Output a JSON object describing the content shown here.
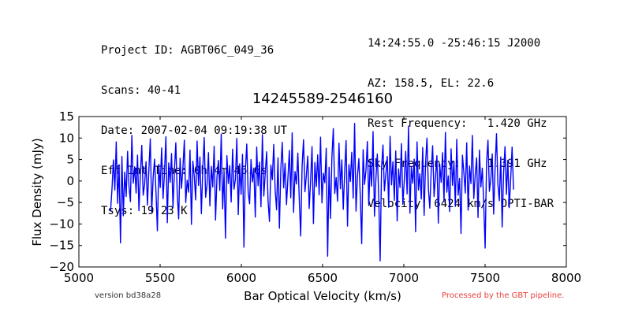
{
  "header": {
    "left": [
      "Project ID: AGBT06C_049_36",
      "Scans: 40-41",
      "Date: 2007-02-04 09:19:38 UT",
      "Eff Int Time: 0h 4m 46.6s",
      "Tsys: 19.23 K"
    ],
    "right": [
      "14:24:55.0 -25:46:15 J2000",
      "AZ: 158.5, EL: 22.6",
      "Rest Frequency:   1.420 GHz",
      "Sky Frequency:    1.391 GHz",
      "Velocity: 6424 km/s OPTI-BAR"
    ]
  },
  "footer": {
    "version": "version bd38a28",
    "processed": "Processed by the GBT pipeline."
  },
  "chart_data": {
    "type": "line",
    "title": "14245589-2546160",
    "xlabel": "Bar Optical Velocity (km/s)",
    "ylabel": "Flux Density (mJy)",
    "xlim": [
      5000,
      8000
    ],
    "ylim": [
      -20,
      15
    ],
    "xticks": [
      5000,
      5500,
      6000,
      6500,
      7000,
      7500,
      8000
    ],
    "yticks": [
      -20,
      -15,
      -10,
      -5,
      0,
      5,
      10,
      15
    ],
    "line_color": "#0000ff",
    "grid": false,
    "series": [
      {
        "x_start": 5195,
        "x_end": 7675,
        "values": [
          -7.0,
          -1.9,
          4.9,
          -2.1,
          9.1,
          -5.2,
          3.8,
          -14.4,
          5.7,
          -8.1,
          2.1,
          -3.6,
          6.9,
          -1.2,
          -4.8,
          10.6,
          -0.5,
          3.3,
          -2.8,
          6.0,
          -6.9,
          1.4,
          8.3,
          -3.3,
          -0.8,
          4.5,
          -5.6,
          2.6,
          9.8,
          -7.2,
          0.7,
          5.1,
          -2.4,
          -11.6,
          3.9,
          -1.5,
          7.7,
          -4.1,
          1.9,
          10.3,
          -9.7,
          4.2,
          -0.3,
          6.4,
          -6.2,
          2.3,
          8.9,
          -3.0,
          -8.8,
          5.3,
          -1.7,
          3.1,
          9.5,
          -5.0,
          0.2,
          -2.6,
          7.2,
          -10.1,
          4.6,
          1.1,
          -4.4,
          9.3,
          -1.0,
          5.6,
          -7.6,
          2.9,
          10.1,
          -3.8,
          -0.9,
          6.6,
          -5.8,
          3.4,
          -1.4,
          8.1,
          -9.1,
          0.9,
          4.8,
          -2.2,
          10.9,
          -6.5,
          2.0,
          -13.3,
          5.9,
          -0.6,
          3.6,
          -4.9,
          7.4,
          -1.9,
          0.4,
          9.9,
          -7.8,
          4.0,
          -3.1,
          6.2,
          -15.4,
          2.4,
          8.6,
          -2.7,
          -5.3,
          5.0,
          -0.2,
          3.0,
          -8.4,
          7.9,
          -1.1,
          4.4,
          -6.0,
          10.8,
          -3.5,
          1.6,
          6.8,
          -4.6,
          -9.4,
          3.7,
          0.3,
          8.5,
          -2.0,
          -6.7,
          5.4,
          -11.0,
          2.7,
          9.0,
          -1.6,
          4.1,
          -5.5,
          0.6,
          7.1,
          -3.9,
          11.2,
          -7.3,
          2.2,
          -0.7,
          6.5,
          -4.3,
          -12.8,
          3.5,
          9.6,
          -2.5,
          1.3,
          5.8,
          -6.4,
          0.1,
          8.0,
          -9.9,
          4.3,
          -1.3,
          6.1,
          -3.2,
          10.2,
          -5.1,
          1.8,
          -0.4,
          7.6,
          -17.5,
          3.2,
          -8.7,
          5.5,
          12.2,
          -2.9,
          0.8,
          -4.7,
          8.8,
          -1.8,
          4.9,
          -6.6,
          2.1,
          9.4,
          -10.5,
          3.8,
          -0.1,
          6.7,
          -4.0,
          13.4,
          -7.0,
          1.0,
          5.2,
          -3.4,
          -14.6,
          7.3,
          -0.8,
          2.5,
          9.2,
          -5.7,
          4.7,
          -1.2,
          11.5,
          -8.2,
          0.5,
          6.3,
          -3.7,
          -18.6,
          3.1,
          8.4,
          -2.3,
          1.5,
          5.7,
          -6.1,
          10.4,
          -0.9,
          4.5,
          -4.5,
          7.0,
          -9.3,
          2.8,
          -1.5,
          8.7,
          -5.4,
          0.0,
          6.9,
          -3.0,
          12.8,
          -7.5,
          3.3,
          -0.5,
          5.1,
          -11.8,
          9.1,
          -2.1,
          1.7,
          -4.2,
          7.8,
          -8.0,
          4.0,
          10.0,
          -1.7,
          -6.3,
          2.6,
          8.2,
          -3.6,
          0.9,
          5.9,
          -9.8,
          3.9,
          -0.3,
          6.6,
          -4.8,
          11.3,
          -2.6,
          1.2,
          -7.1,
          7.5,
          -1.0,
          4.6,
          -5.9,
          9.7,
          -3.3,
          0.6,
          -12.2,
          6.0,
          2.0,
          -2.8,
          8.9,
          -6.8,
          3.5,
          -0.6,
          10.6,
          -4.1,
          1.4,
          5.4,
          -8.5,
          7.2,
          -1.4,
          3.0,
          -5.2,
          -15.6,
          4.2,
          9.5,
          -2.4,
          0.3,
          6.3,
          -7.7,
          2.9,
          11.0,
          -0.7,
          -4.6,
          5.6,
          -10.7,
          1.9,
          8.0,
          -3.1,
          4.8,
          -6.2,
          0.4,
          7.9,
          -2.0
        ]
      }
    ]
  }
}
